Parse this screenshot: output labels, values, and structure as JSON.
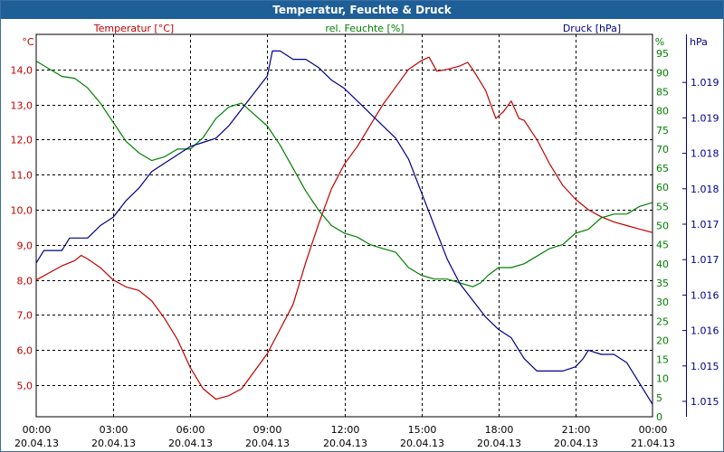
{
  "window": {
    "title": "Temperatur, Feuchte & Druck"
  },
  "colors": {
    "temperature": "#c00000",
    "humidity": "#008000",
    "pressure": "#00008b",
    "title_bar": "#1f5f97"
  },
  "chart_data": {
    "type": "line",
    "title": "Temperatur, Feuchte & Druck",
    "x_range": [
      0,
      24
    ],
    "x_ticks": [
      {
        "time": "00:00",
        "date": "20.04.13"
      },
      {
        "time": "03:00",
        "date": "20.04.13"
      },
      {
        "time": "06:00",
        "date": "20.04.13"
      },
      {
        "time": "09:00",
        "date": "20.04.13"
      },
      {
        "time": "12:00",
        "date": "20.04.13"
      },
      {
        "time": "15:00",
        "date": "20.04.13"
      },
      {
        "time": "18:00",
        "date": "20.04.13"
      },
      {
        "time": "21:00",
        "date": "20.04.13"
      },
      {
        "time": "00:00",
        "date": "21.04.13"
      }
    ],
    "axes": {
      "temperature": {
        "label": "Temperatur [°C]",
        "unit": "°C",
        "range": [
          4.1,
          15.0
        ],
        "ticks": [
          "5,0",
          "6,0",
          "7,0",
          "8,0",
          "9,0",
          "10,0",
          "11,0",
          "12,0",
          "13,0",
          "14,0"
        ]
      },
      "humidity": {
        "label": "rel. Feuchte [%]",
        "unit": "%",
        "range": [
          0,
          100
        ],
        "ticks": [
          "0",
          "5",
          "10",
          "15",
          "20",
          "25",
          "30",
          "35",
          "40",
          "45",
          "50",
          "55",
          "60",
          "65",
          "70",
          "75",
          "80",
          "85",
          "90",
          "95"
        ]
      },
      "pressure": {
        "label": "Druck [hPa]",
        "unit": "hPa",
        "range": [
          1014.9,
          1019.5
        ],
        "ticks": [
          "1.015",
          "1.015",
          "1.016",
          "1.016",
          "1.017",
          "1.017",
          "1.018",
          "1.018",
          "1.019",
          "1.019"
        ]
      }
    },
    "series": [
      {
        "name": "Temperatur [°C]",
        "axis": "temperature",
        "points": [
          [
            0,
            8.0
          ],
          [
            0.5,
            8.2
          ],
          [
            1.0,
            8.4
          ],
          [
            1.5,
            8.55
          ],
          [
            1.75,
            8.7
          ],
          [
            2.0,
            8.6
          ],
          [
            2.5,
            8.35
          ],
          [
            3.0,
            8.0
          ],
          [
            3.5,
            7.8
          ],
          [
            4.0,
            7.7
          ],
          [
            4.5,
            7.4
          ],
          [
            5.0,
            6.9
          ],
          [
            5.5,
            6.3
          ],
          [
            6.0,
            5.5
          ],
          [
            6.5,
            4.9
          ],
          [
            7.0,
            4.6
          ],
          [
            7.5,
            4.7
          ],
          [
            8.0,
            4.9
          ],
          [
            8.5,
            5.4
          ],
          [
            9.0,
            5.9
          ],
          [
            9.5,
            6.6
          ],
          [
            10.0,
            7.3
          ],
          [
            10.5,
            8.5
          ],
          [
            11.0,
            9.6
          ],
          [
            11.5,
            10.6
          ],
          [
            12.0,
            11.3
          ],
          [
            12.5,
            11.8
          ],
          [
            13.0,
            12.4
          ],
          [
            13.5,
            13.0
          ],
          [
            14.0,
            13.5
          ],
          [
            14.5,
            14.0
          ],
          [
            15.0,
            14.25
          ],
          [
            15.3,
            14.35
          ],
          [
            15.6,
            13.95
          ],
          [
            16.0,
            14.0
          ],
          [
            16.5,
            14.1
          ],
          [
            16.8,
            14.2
          ],
          [
            17.0,
            14.0
          ],
          [
            17.5,
            13.4
          ],
          [
            17.9,
            12.6
          ],
          [
            18.2,
            12.8
          ],
          [
            18.5,
            13.1
          ],
          [
            18.8,
            12.6
          ],
          [
            19.0,
            12.55
          ],
          [
            19.5,
            12.0
          ],
          [
            20.0,
            11.3
          ],
          [
            20.5,
            10.7
          ],
          [
            21.0,
            10.3
          ],
          [
            21.5,
            10.0
          ],
          [
            22.0,
            9.8
          ],
          [
            22.5,
            9.65
          ],
          [
            23.0,
            9.55
          ],
          [
            23.5,
            9.45
          ],
          [
            24.0,
            9.35
          ]
        ]
      },
      {
        "name": "rel. Feuchte [%]",
        "axis": "humidity",
        "points": [
          [
            0,
            93
          ],
          [
            0.5,
            91
          ],
          [
            1.0,
            89
          ],
          [
            1.5,
            88.5
          ],
          [
            2.0,
            86
          ],
          [
            2.5,
            82
          ],
          [
            3.0,
            77
          ],
          [
            3.5,
            72
          ],
          [
            4.0,
            69
          ],
          [
            4.5,
            67
          ],
          [
            5.0,
            68
          ],
          [
            5.5,
            70
          ],
          [
            6.0,
            70
          ],
          [
            6.5,
            73
          ],
          [
            7.0,
            78
          ],
          [
            7.5,
            81
          ],
          [
            8.0,
            82
          ],
          [
            8.5,
            79
          ],
          [
            9.0,
            76
          ],
          [
            9.5,
            71
          ],
          [
            10.0,
            65
          ],
          [
            10.5,
            59
          ],
          [
            11.0,
            54
          ],
          [
            11.5,
            50
          ],
          [
            12.0,
            48
          ],
          [
            12.5,
            47
          ],
          [
            13.0,
            45
          ],
          [
            13.5,
            44
          ],
          [
            14.0,
            43
          ],
          [
            14.5,
            39
          ],
          [
            15.0,
            37
          ],
          [
            15.5,
            36
          ],
          [
            16.0,
            36
          ],
          [
            16.5,
            35
          ],
          [
            17.0,
            34
          ],
          [
            17.3,
            35
          ],
          [
            17.6,
            37
          ],
          [
            18.0,
            39
          ],
          [
            18.5,
            39
          ],
          [
            19.0,
            40
          ],
          [
            19.5,
            42
          ],
          [
            20.0,
            44
          ],
          [
            20.5,
            45
          ],
          [
            21.0,
            48
          ],
          [
            21.5,
            49
          ],
          [
            22.0,
            52
          ],
          [
            22.5,
            53
          ],
          [
            23.0,
            53
          ],
          [
            23.5,
            55
          ],
          [
            24.0,
            56
          ]
        ]
      },
      {
        "name": "Druck [hPa]",
        "axis": "pressure",
        "points": [
          [
            0,
            1016.75
          ],
          [
            0.3,
            1016.9
          ],
          [
            1.0,
            1016.9
          ],
          [
            1.3,
            1017.05
          ],
          [
            2.0,
            1017.05
          ],
          [
            2.5,
            1017.2
          ],
          [
            3.0,
            1017.3
          ],
          [
            3.5,
            1017.5
          ],
          [
            4.0,
            1017.65
          ],
          [
            4.5,
            1017.85
          ],
          [
            5.0,
            1017.95
          ],
          [
            5.5,
            1018.05
          ],
          [
            6.0,
            1018.15
          ],
          [
            6.5,
            1018.2
          ],
          [
            7.0,
            1018.25
          ],
          [
            7.5,
            1018.4
          ],
          [
            8.0,
            1018.6
          ],
          [
            8.5,
            1018.8
          ],
          [
            9.0,
            1019.0
          ],
          [
            9.2,
            1019.3
          ],
          [
            9.5,
            1019.3
          ],
          [
            10.0,
            1019.2
          ],
          [
            10.5,
            1019.2
          ],
          [
            11.0,
            1019.1
          ],
          [
            11.5,
            1018.95
          ],
          [
            12.0,
            1018.85
          ],
          [
            12.5,
            1018.7
          ],
          [
            13.0,
            1018.55
          ],
          [
            13.5,
            1018.4
          ],
          [
            14.0,
            1018.25
          ],
          [
            14.5,
            1018.0
          ],
          [
            15.0,
            1017.6
          ],
          [
            15.5,
            1017.2
          ],
          [
            16.0,
            1016.8
          ],
          [
            16.5,
            1016.5
          ],
          [
            17.0,
            1016.3
          ],
          [
            17.5,
            1016.1
          ],
          [
            18.0,
            1015.95
          ],
          [
            18.5,
            1015.85
          ],
          [
            19.0,
            1015.6
          ],
          [
            19.5,
            1015.45
          ],
          [
            20.0,
            1015.45
          ],
          [
            20.5,
            1015.45
          ],
          [
            21.0,
            1015.5
          ],
          [
            21.3,
            1015.6
          ],
          [
            21.5,
            1015.7
          ],
          [
            22.0,
            1015.65
          ],
          [
            22.5,
            1015.65
          ],
          [
            23.0,
            1015.55
          ],
          [
            23.5,
            1015.3
          ],
          [
            24.0,
            1015.05
          ]
        ]
      }
    ],
    "grid": true,
    "legend": "top"
  }
}
